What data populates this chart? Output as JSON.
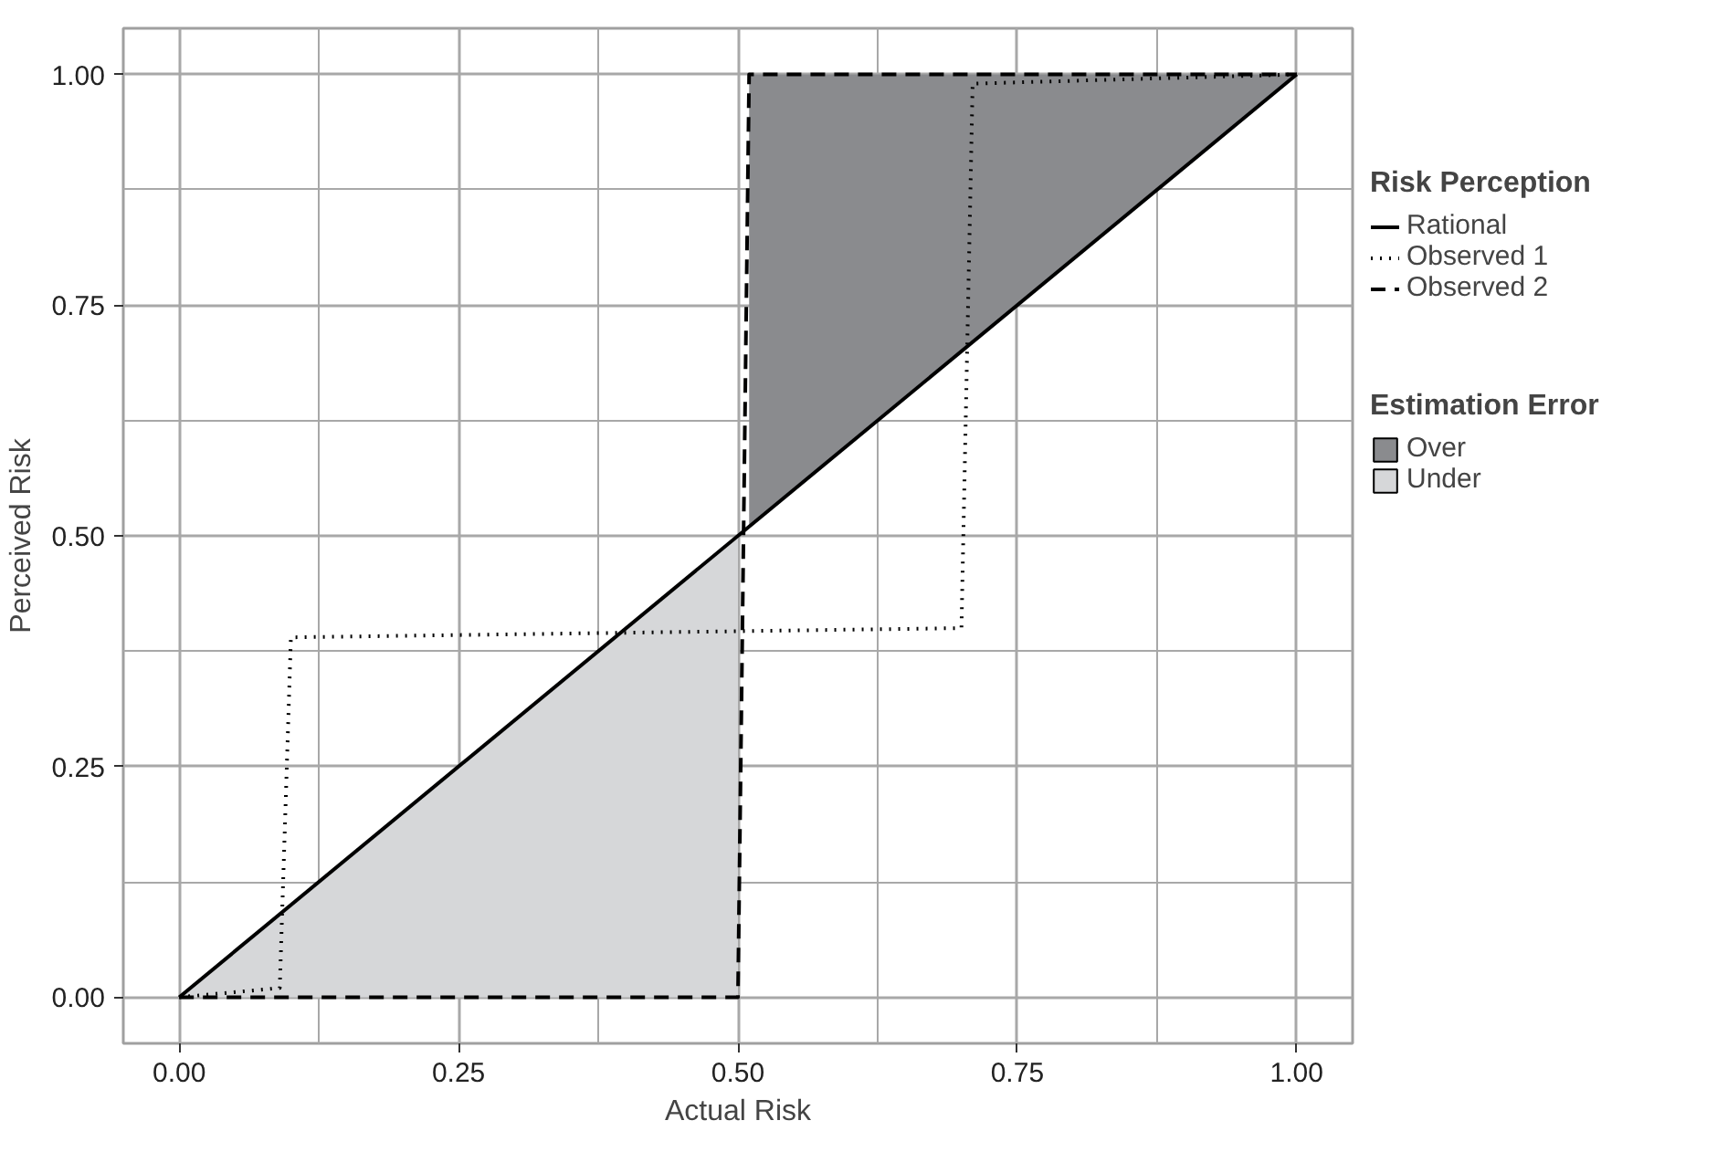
{
  "chart_data": {
    "type": "line",
    "xlabel": "Actual Risk",
    "ylabel": "Perceived Risk",
    "legend_title": [
      "Risk Perception",
      "Estimation Error"
    ],
    "xlim": [
      -0.05,
      1.05
    ],
    "ylim": [
      -0.05,
      1.05
    ],
    "xticks": [
      {
        "value": 0,
        "label": "0.00"
      },
      {
        "value": 0.25,
        "label": "0.25"
      },
      {
        "value": 0.5,
        "label": "0.50"
      },
      {
        "value": 0.75,
        "label": "0.75"
      },
      {
        "value": 1,
        "label": "1.00"
      }
    ],
    "yticks": [
      {
        "value": 0,
        "label": "0.00"
      },
      {
        "value": 0.25,
        "label": "0.25"
      },
      {
        "value": 0.5,
        "label": "0.50"
      },
      {
        "value": 0.75,
        "label": "0.75"
      },
      {
        "value": 1,
        "label": "1.00"
      }
    ],
    "grid": true,
    "legend": "right",
    "series": [
      {
        "name": "Over",
        "type": "area",
        "color": "#8a8b8e",
        "x": [
          0.51,
          0.51,
          1,
          0.51
        ],
        "values": [
          0.51,
          1,
          1,
          0.51
        ]
      },
      {
        "name": "Under",
        "type": "area",
        "color": "#d6d7d9",
        "x": [
          0,
          0.5,
          0.5,
          0
        ],
        "values": [
          0,
          0.5,
          0,
          0
        ]
      },
      {
        "name": "Rational",
        "color": "#000000",
        "line_style": "solid",
        "x": [
          0,
          1
        ],
        "values": [
          0,
          1
        ]
      },
      {
        "name": "Observed 1",
        "color": "#000000",
        "line_style": "dotted",
        "x": [
          0,
          0.09,
          0.1,
          0.7,
          0.71,
          1
        ],
        "values": [
          0,
          0.01,
          0.39,
          0.4,
          0.99,
          1
        ]
      },
      {
        "name": "Observed 2",
        "color": "#000000",
        "line_style": "dashed",
        "x": [
          0,
          0.5,
          0.51,
          1
        ],
        "values": [
          0,
          0,
          1,
          1
        ]
      }
    ]
  }
}
